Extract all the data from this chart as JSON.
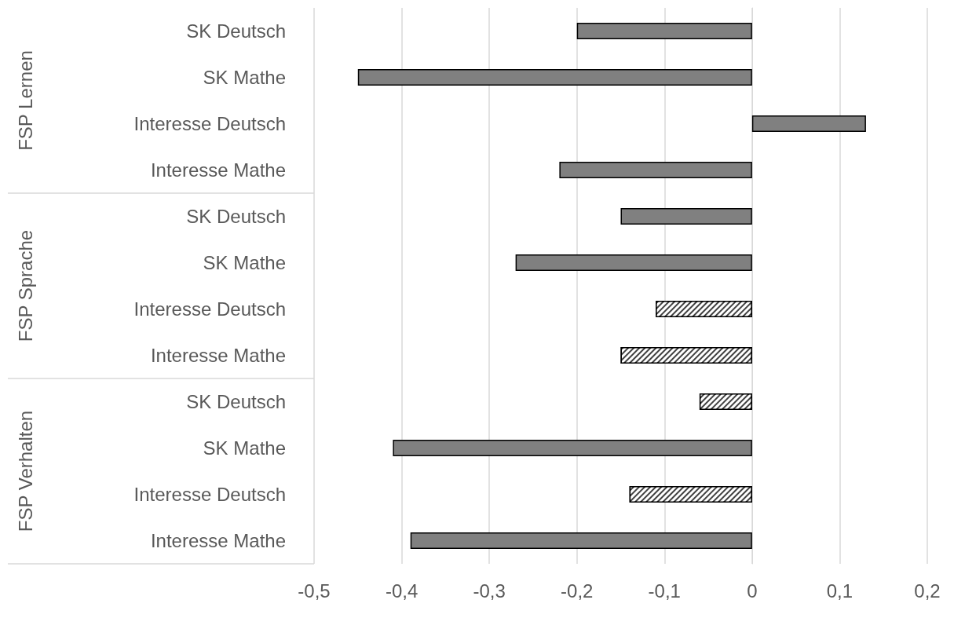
{
  "chart_data": {
    "type": "bar",
    "orientation": "horizontal",
    "stacked": true,
    "categories": [
      "SK Deutsch",
      "SK Mathe",
      "Interesse Deutsch",
      "Interesse Mathe",
      "SK Deutsch",
      "SK Mathe",
      "Interesse Deutsch",
      "Interesse Mathe",
      "SK Deutsch",
      "SK Mathe",
      "Interesse Deutsch",
      "Interesse Mathe"
    ],
    "series": [
      {
        "color": "#808080",
        "values": [
          -0.2,
          -0.45,
          0.13,
          -0.22,
          -0.15,
          -0.27,
          null,
          null,
          null,
          -0.41,
          null,
          -0.39
        ]
      },
      {
        "color": "#404040",
        "values": [
          null,
          null,
          null,
          null,
          null,
          null,
          -0.11,
          -0.15,
          -0.06,
          null,
          -0.14,
          null
        ]
      }
    ],
    "xlim": [
      -0.5,
      0.2
    ],
    "xticks": [
      {
        "value": -0.5,
        "label": "-0,5"
      },
      {
        "value": -0.4,
        "label": "-0,4"
      },
      {
        "value": -0.3,
        "label": "-0,3"
      },
      {
        "value": -0.2,
        "label": "-0,2"
      },
      {
        "value": -0.1,
        "label": "-0,1"
      },
      0,
      {
        "value": 0.1,
        "label": "0,1"
      },
      {
        "value": 0.2,
        "label": "0,2"
      }
    ],
    "grid": "x",
    "annotations": [
      "FSP Lernen",
      "FSP Sprache",
      "FSP Verhalten"
    ]
  }
}
